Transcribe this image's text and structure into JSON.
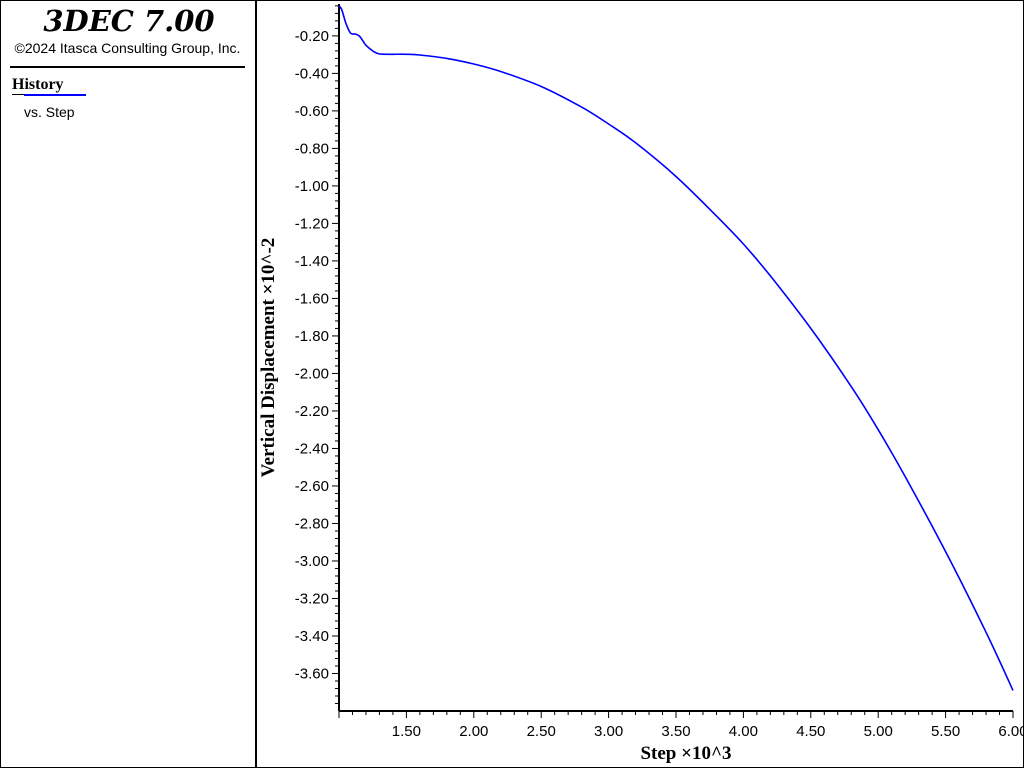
{
  "app": {
    "title": "3DEC 7.00",
    "copyright": "©2024 Itasca Consulting Group, Inc."
  },
  "legend": {
    "heading": "History",
    "entries": [
      {
        "label": "vs. Step",
        "color": "#0000ff"
      }
    ]
  },
  "chart_data": {
    "type": "line",
    "xlabel": "Step ×10^3",
    "ylabel": "Vertical Displacement ×10^-2",
    "xlim": [
      1.0,
      6.0
    ],
    "ylim": [
      -3.8,
      -0.03
    ],
    "x_tick_labels": [
      "1.50",
      "2.00",
      "2.50",
      "3.00",
      "3.50",
      "4.00",
      "4.50",
      "5.00",
      "5.50",
      "6.00"
    ],
    "y_tick_labels": [
      "-0.20",
      "-0.40",
      "-0.60",
      "-0.80",
      "-1.00",
      "-1.20",
      "-1.40",
      "-1.60",
      "-1.80",
      "-2.00",
      "-2.20",
      "-2.40",
      "-2.60",
      "-2.80",
      "-3.00",
      "-3.20",
      "-3.40",
      "-3.60"
    ],
    "grid": false,
    "series": [
      {
        "color": "#0000ff",
        "x": [
          1.0,
          1.02,
          1.05,
          1.08,
          1.1,
          1.12,
          1.15,
          1.18,
          1.2,
          1.25,
          1.3,
          1.4,
          1.5,
          1.6,
          1.8,
          2.0,
          2.2,
          2.5,
          2.8,
          3.0,
          3.2,
          3.5,
          3.8,
          4.0,
          4.2,
          4.5,
          4.8,
          5.0,
          5.2,
          5.5,
          5.8,
          6.0
        ],
        "y": [
          -0.04,
          -0.06,
          -0.13,
          -0.18,
          -0.19,
          -0.19,
          -0.2,
          -0.23,
          -0.25,
          -0.28,
          -0.296,
          -0.298,
          -0.298,
          -0.302,
          -0.32,
          -0.35,
          -0.39,
          -0.47,
          -0.58,
          -0.67,
          -0.77,
          -0.95,
          -1.16,
          -1.31,
          -1.48,
          -1.76,
          -2.07,
          -2.3,
          -2.55,
          -2.95,
          -3.38,
          -3.69
        ]
      }
    ]
  }
}
